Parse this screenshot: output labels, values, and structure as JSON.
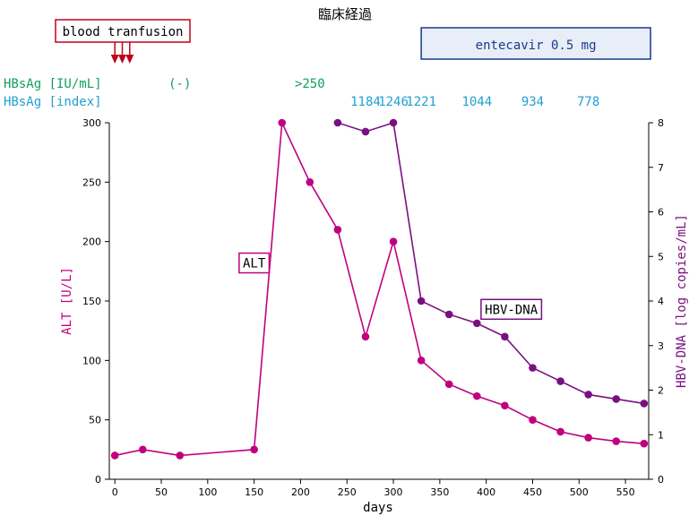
{
  "chart_data": {
    "type": "line",
    "title": "臨床経過",
    "xlabel": "days",
    "xlim": [
      -6,
      575
    ],
    "xticks": [
      0,
      50,
      100,
      150,
      200,
      250,
      300,
      350,
      400,
      450,
      500,
      550
    ],
    "y_left": {
      "label": "ALT [U/L]",
      "ylim": [
        0,
        300
      ],
      "ticks": [
        0,
        50,
        100,
        150,
        200,
        250,
        300
      ],
      "color": "#c0007f"
    },
    "y_right": {
      "label": "HBV-DNA [log copies/mL]",
      "ylim": [
        0,
        8
      ],
      "ticks": [
        0,
        1,
        2,
        3,
        4,
        5,
        6,
        7,
        8
      ],
      "color": "#7a1080"
    },
    "series": [
      {
        "name": "ALT",
        "axis": "left",
        "color": "#c0007f",
        "x": [
          0,
          30,
          70,
          150,
          180,
          210,
          240,
          270,
          300,
          330,
          360,
          390,
          420,
          450,
          480,
          510,
          540,
          570
        ],
        "y": [
          20,
          25,
          20,
          25,
          300,
          250,
          210,
          120,
          200,
          100,
          80,
          70,
          62,
          50,
          40,
          35,
          32,
          30
        ]
      },
      {
        "name": "HBV-DNA",
        "axis": "right",
        "color": "#7a1080",
        "x": [
          240,
          270,
          300,
          330,
          360,
          390,
          420,
          450,
          480,
          510,
          540,
          570
        ],
        "y": [
          8.0,
          7.8,
          8.0,
          4.0,
          3.7,
          3.5,
          3.2,
          2.5,
          2.2,
          1.9,
          1.8,
          1.7
        ]
      }
    ],
    "series_labels": [
      {
        "series": "ALT",
        "text": "ALT",
        "x": 150,
        "y_left": 182
      },
      {
        "series": "HBV-DNA",
        "text": "HBV-DNA",
        "x": 427,
        "y_left": 143
      }
    ],
    "annotations": {
      "transfusion": {
        "text": "blood tranfusion",
        "color": "#c0001a",
        "x": [
          0,
          8,
          16
        ]
      },
      "treatment": {
        "text": "entecavir 0.5 mg",
        "color": "#1a3a8a",
        "fill": "#e8eef8",
        "x_start": 330,
        "x_end": 577
      },
      "hbsag_iu": {
        "label": "HBsAg [IU/mL]",
        "color": "#10a060",
        "values": [
          {
            "x": 70,
            "text": "(-)"
          },
          {
            "x": 210,
            "text": ">250"
          }
        ]
      },
      "hbsag_index": {
        "label": "HBsAg [index]",
        "color": "#20a0d0",
        "values": [
          {
            "x": 270,
            "text": "1184"
          },
          {
            "x": 300,
            "text": "1246"
          },
          {
            "x": 330,
            "text": "1221"
          },
          {
            "x": 390,
            "text": "1044"
          },
          {
            "x": 450,
            "text": "934"
          },
          {
            "x": 510,
            "text": "778"
          }
        ]
      }
    }
  }
}
